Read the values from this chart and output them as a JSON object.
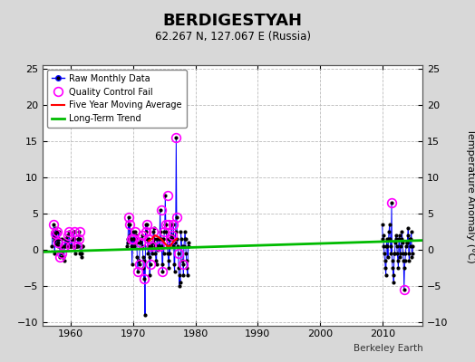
{
  "title": "BERDIGESTYAH",
  "subtitle": "62.267 N, 127.067 E (Russia)",
  "ylabel": "Temperature Anomaly (°C)",
  "credit": "Berkeley Earth",
  "ylim": [
    -10.5,
    25.5
  ],
  "xlim": [
    1955.5,
    2016.5
  ],
  "yticks": [
    -10,
    -5,
    0,
    5,
    10,
    15,
    20,
    25
  ],
  "xticks": [
    1960,
    1970,
    1980,
    1990,
    2000,
    2010
  ],
  "outer_bg": "#d8d8d8",
  "plot_bg": "#ffffff",
  "grid_color": "#bbbbbb",
  "raw_color": "#0000ff",
  "dot_color": "#000000",
  "qc_color": "#ff00ff",
  "ma_color": "#ff0000",
  "trend_color": "#00bb00",
  "raw_segments": [
    {
      "times": [
        1957.0,
        1957.083,
        1957.167,
        1957.25,
        1957.333,
        1957.417,
        1957.5,
        1957.583,
        1957.667,
        1957.75,
        1957.833,
        1957.917,
        1958.0,
        1958.083,
        1958.167,
        1958.25,
        1958.333,
        1958.417,
        1958.5,
        1958.583,
        1958.667,
        1958.75,
        1958.833,
        1958.917,
        1959.0,
        1959.083,
        1959.167,
        1959.25,
        1959.333,
        1959.417,
        1959.5,
        1959.583,
        1959.667,
        1959.75,
        1959.833,
        1959.917,
        1960.0,
        1960.083,
        1960.167,
        1960.25,
        1960.333,
        1960.417,
        1960.5,
        1960.583,
        1960.667,
        1960.75,
        1960.833,
        1960.917,
        1961.0,
        1961.083,
        1961.167,
        1961.25,
        1961.333,
        1961.417,
        1961.5,
        1961.583,
        1961.667,
        1961.75,
        1961.833,
        1961.917
      ],
      "vals": [
        0.5,
        2.5,
        1.8,
        3.5,
        1.2,
        -0.5,
        2.2,
        3.0,
        0.8,
        2.5,
        1.5,
        0.5,
        1.0,
        2.5,
        1.5,
        -1.0,
        0.5,
        0.5,
        -0.5,
        1.5,
        0.5,
        -1.0,
        -1.0,
        -1.5,
        0.5,
        1.5,
        0.5,
        1.5,
        1.0,
        2.0,
        2.0,
        0.5,
        0.5,
        2.5,
        0.5,
        0.5,
        0.5,
        1.5,
        0.5,
        1.5,
        1.5,
        2.5,
        2.5,
        1.5,
        -0.5,
        0.5,
        0.5,
        0.5,
        0.5,
        1.5,
        0.5,
        2.0,
        2.5,
        1.5,
        -0.5,
        -0.5,
        -1.0,
        -0.5,
        0.5,
        0.5
      ]
    },
    {
      "times": [
        1969.0,
        1969.083,
        1969.167,
        1969.25,
        1969.333,
        1969.417,
        1969.5,
        1969.583,
        1969.667,
        1969.75,
        1969.833,
        1969.917,
        1970.0,
        1970.083,
        1970.167,
        1970.25,
        1970.333,
        1970.417,
        1970.5,
        1970.583,
        1970.667,
        1970.75,
        1970.833,
        1970.917,
        1971.0,
        1971.083,
        1971.167,
        1971.25,
        1971.333,
        1971.417,
        1971.5,
        1971.583,
        1971.667,
        1971.75,
        1971.833,
        1971.917,
        1972.0,
        1972.083,
        1972.167,
        1972.25,
        1972.333,
        1972.417,
        1972.5,
        1972.583,
        1972.667,
        1972.75,
        1972.833,
        1972.917,
        1973.0,
        1973.083,
        1973.167,
        1973.25,
        1973.333,
        1973.417,
        1973.5,
        1973.583,
        1973.667,
        1973.75,
        1973.833,
        1973.917,
        1974.0,
        1974.083,
        1974.167,
        1974.25,
        1974.333,
        1974.417,
        1974.5,
        1974.583,
        1974.667,
        1974.75,
        1974.833,
        1974.917,
        1975.0,
        1975.083,
        1975.167,
        1975.25,
        1975.333,
        1975.417,
        1975.5,
        1975.583,
        1975.667,
        1975.75,
        1975.833,
        1975.917,
        1976.0,
        1976.083,
        1976.167,
        1976.25,
        1976.333,
        1976.417,
        1976.5,
        1976.583,
        1976.667,
        1976.75,
        1976.833,
        1976.917,
        1977.0,
        1977.083,
        1977.167,
        1977.25,
        1977.333,
        1977.417,
        1977.5,
        1977.583,
        1977.667,
        1977.75,
        1977.833,
        1977.917,
        1978.0,
        1978.083,
        1978.167,
        1978.25,
        1978.333,
        1978.417,
        1978.5,
        1978.583,
        1978.667,
        1978.75,
        1978.833,
        1978.917
      ],
      "vals": [
        0.5,
        1.5,
        1.0,
        4.5,
        3.5,
        2.0,
        3.5,
        1.5,
        0.5,
        1.5,
        -2.0,
        0.5,
        1.5,
        2.5,
        0.5,
        2.5,
        1.0,
        1.5,
        2.0,
        1.0,
        -1.0,
        -3.0,
        -1.5,
        -1.5,
        -2.0,
        1.0,
        1.5,
        1.0,
        1.5,
        0.5,
        2.0,
        -1.0,
        -2.5,
        -4.0,
        -1.5,
        -9.0,
        2.5,
        3.5,
        1.5,
        3.5,
        0.5,
        -0.5,
        1.5,
        -1.0,
        -3.5,
        -2.0,
        0.5,
        1.0,
        0.5,
        -0.5,
        1.0,
        2.5,
        3.0,
        1.5,
        0.5,
        -0.5,
        -1.5,
        -2.0,
        1.5,
        0.5,
        0.0,
        0.5,
        1.5,
        0.5,
        5.5,
        2.5,
        1.5,
        0.5,
        -2.0,
        -3.0,
        1.5,
        -0.5,
        2.5,
        3.5,
        7.5,
        3.5,
        2.5,
        1.5,
        0.5,
        -0.5,
        -1.5,
        -2.5,
        1.5,
        -0.5,
        1.5,
        2.0,
        3.5,
        2.0,
        1.5,
        0.5,
        3.5,
        -2.0,
        -3.0,
        1.0,
        2.5,
        15.5,
        4.5,
        1.5,
        0.5,
        -0.5,
        -2.5,
        -5.0,
        -3.5,
        -4.5,
        2.5,
        1.5,
        0.5,
        -1.5,
        -2.0,
        -3.5,
        0.5,
        1.5,
        2.5,
        1.5,
        -0.5,
        -1.5,
        -2.5,
        -3.5,
        1.0,
        0.5
      ]
    },
    {
      "times": [
        2010.0,
        2010.083,
        2010.167,
        2010.25,
        2010.333,
        2010.417,
        2010.5,
        2010.583,
        2010.667,
        2010.75,
        2010.833,
        2010.917,
        2011.0,
        2011.083,
        2011.167,
        2011.25,
        2011.333,
        2011.417,
        2011.5,
        2011.583,
        2011.667,
        2011.75,
        2011.833,
        2011.917,
        2012.0,
        2012.083,
        2012.167,
        2012.25,
        2012.333,
        2012.417,
        2012.5,
        2012.583,
        2012.667,
        2012.75,
        2012.833,
        2012.917,
        2013.0,
        2013.083,
        2013.167,
        2013.25,
        2013.333,
        2013.417,
        2013.5,
        2013.583,
        2013.667,
        2013.75,
        2013.833,
        2013.917,
        2014.0,
        2014.083,
        2014.167,
        2014.25,
        2014.333,
        2014.417,
        2014.5,
        2014.583,
        2014.667,
        2014.75,
        2014.833,
        2014.917
      ],
      "vals": [
        3.5,
        1.5,
        2.0,
        0.5,
        -0.5,
        -1.5,
        -2.5,
        -3.5,
        0.5,
        1.5,
        0.5,
        -1.0,
        1.5,
        2.5,
        3.5,
        1.5,
        0.5,
        -0.5,
        6.5,
        -1.5,
        -2.5,
        -3.5,
        -4.5,
        -0.5,
        -0.5,
        1.0,
        2.0,
        1.5,
        0.5,
        -0.5,
        -1.5,
        -2.5,
        1.5,
        2.0,
        -1.0,
        -0.5,
        0.5,
        1.5,
        2.5,
        1.0,
        -0.5,
        -1.5,
        -5.5,
        -2.5,
        -1.5,
        -0.5,
        0.5,
        1.0,
        1.0,
        2.0,
        3.0,
        -0.5,
        -1.5,
        1.5,
        0.5,
        1.5,
        2.5,
        -1.0,
        -0.5,
        0.5
      ]
    }
  ],
  "qc_fails": [
    [
      1957.25,
      3.5
    ],
    [
      1957.5,
      2.2
    ],
    [
      1957.75,
      2.5
    ],
    [
      1958.0,
      1.0
    ],
    [
      1958.25,
      -1.0
    ],
    [
      1958.5,
      -0.5
    ],
    [
      1959.0,
      0.5
    ],
    [
      1959.5,
      2.0
    ],
    [
      1959.75,
      2.5
    ],
    [
      1960.0,
      0.5
    ],
    [
      1960.5,
      2.5
    ],
    [
      1961.0,
      0.5
    ],
    [
      1961.25,
      1.5
    ],
    [
      1961.5,
      2.5
    ],
    [
      1969.25,
      4.5
    ],
    [
      1969.5,
      3.5
    ],
    [
      1969.75,
      1.5
    ],
    [
      1970.0,
      1.5
    ],
    [
      1970.25,
      2.5
    ],
    [
      1970.75,
      -3.0
    ],
    [
      1971.0,
      -2.0
    ],
    [
      1971.25,
      1.0
    ],
    [
      1971.5,
      2.0
    ],
    [
      1971.75,
      -4.0
    ],
    [
      1972.0,
      2.5
    ],
    [
      1972.25,
      3.5
    ],
    [
      1972.5,
      1.5
    ],
    [
      1972.75,
      -2.0
    ],
    [
      1973.0,
      0.5
    ],
    [
      1973.25,
      2.5
    ],
    [
      1974.25,
      0.5
    ],
    [
      1974.5,
      5.5
    ],
    [
      1974.75,
      -3.0
    ],
    [
      1975.0,
      2.5
    ],
    [
      1975.25,
      3.5
    ],
    [
      1975.5,
      7.5
    ],
    [
      1975.75,
      3.5
    ],
    [
      1976.0,
      1.5
    ],
    [
      1976.25,
      2.0
    ],
    [
      1976.5,
      3.5
    ],
    [
      1976.917,
      15.5
    ],
    [
      1977.0,
      4.5
    ],
    [
      1977.25,
      -0.5
    ],
    [
      1978.0,
      -2.0
    ],
    [
      2011.5,
      6.5
    ],
    [
      2013.5,
      -5.5
    ]
  ],
  "trend_x": [
    1955.5,
    2016.5
  ],
  "trend_y": [
    -0.3,
    1.3
  ],
  "five_year_ma": [
    [
      1972.5,
      1.2
    ],
    [
      1973.0,
      1.5
    ],
    [
      1973.5,
      2.0
    ],
    [
      1974.0,
      1.8
    ],
    [
      1974.5,
      1.5
    ],
    [
      1975.0,
      1.0
    ],
    [
      1975.5,
      0.5
    ],
    [
      1976.0,
      0.5
    ],
    [
      1976.5,
      1.2
    ],
    [
      1977.0,
      1.5
    ]
  ]
}
